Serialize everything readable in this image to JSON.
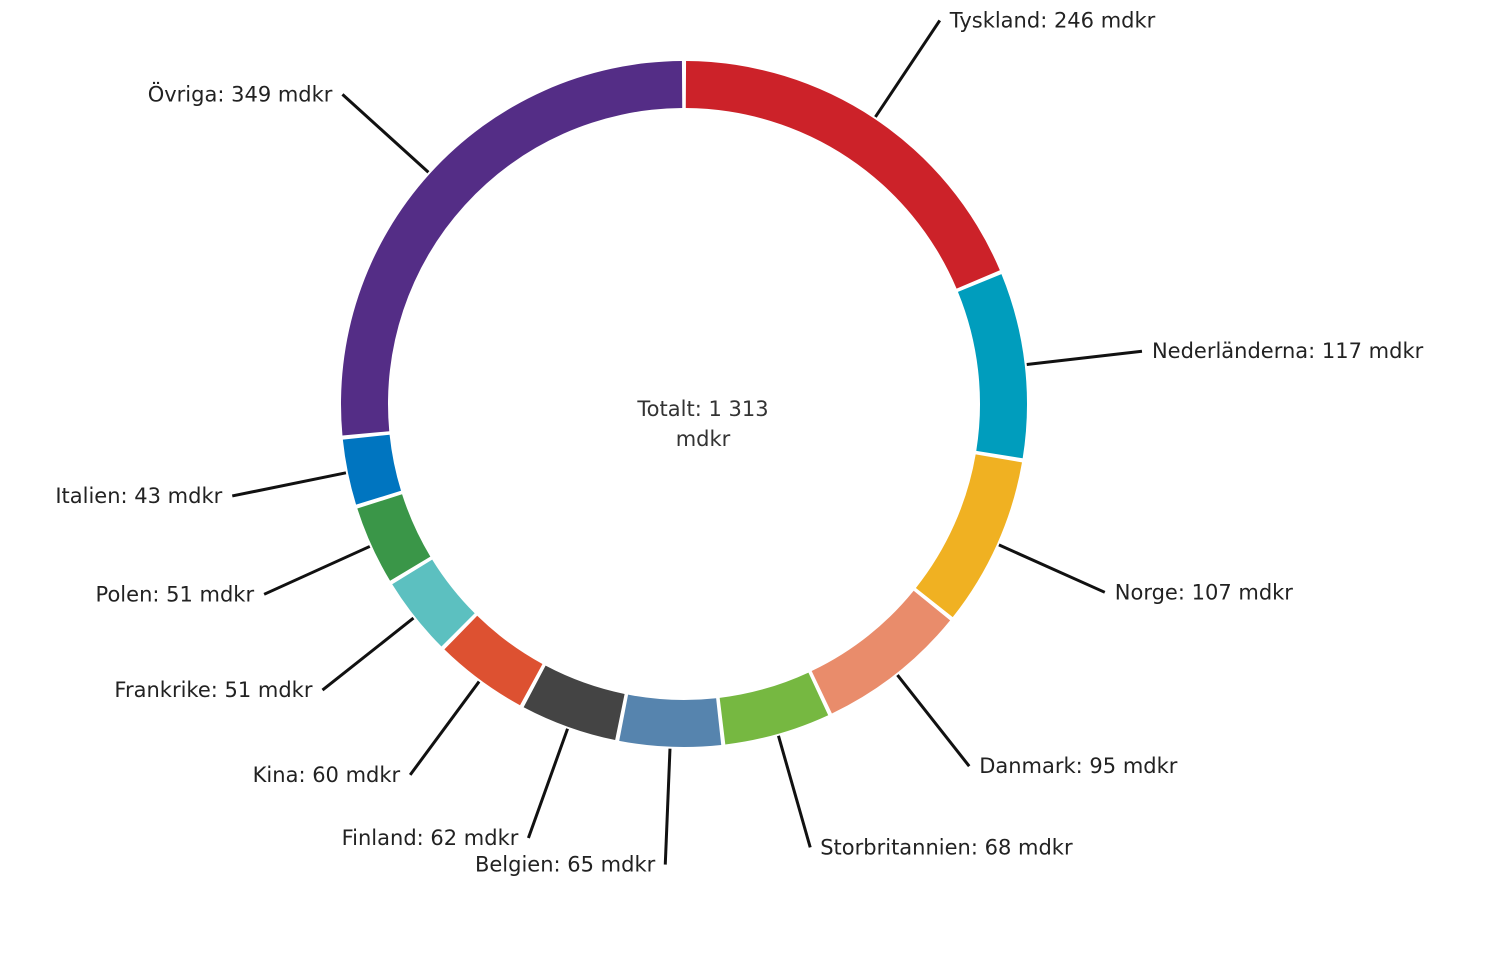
{
  "chart_data": {
    "type": "pie",
    "variant": "donut",
    "start_angle_deg": 0,
    "direction": "clockwise",
    "unit": "mdkr",
    "total": {
      "line1": "Totalt: 1 313",
      "line2": "mdkr",
      "value": 1313
    },
    "slices": [
      {
        "name": "Tyskland",
        "value": 246,
        "label": "Tyskland: 246 mdkr",
        "color": "#cc2229",
        "label_side": "right"
      },
      {
        "name": "Nederländerna",
        "value": 117,
        "label": "Nederländerna: 117 mdkr",
        "color": "#009dbd",
        "label_side": "right"
      },
      {
        "name": "Norge",
        "value": 107,
        "label": "Norge: 107 mdkr",
        "color": "#f0b122",
        "label_side": "right"
      },
      {
        "name": "Danmark",
        "value": 95,
        "label": "Danmark: 95 mdkr",
        "color": "#e98c6b",
        "label_side": "right"
      },
      {
        "name": "Storbritannien",
        "value": 68,
        "label": "Storbritannien: 68 mdkr",
        "color": "#76b841",
        "label_side": "right"
      },
      {
        "name": "Belgien",
        "value": 65,
        "label": "Belgien: 65 mdkr",
        "color": "#5684ae",
        "label_side": "left"
      },
      {
        "name": "Finland",
        "value": 62,
        "label": "Finland: 62 mdkr",
        "color": "#444444",
        "label_side": "left"
      },
      {
        "name": "Kina",
        "value": 60,
        "label": "Kina: 60 mdkr",
        "color": "#dd5131",
        "label_side": "left"
      },
      {
        "name": "Frankrike",
        "value": 51,
        "label": "Frankrike: 51 mdkr",
        "color": "#5cc0c0",
        "label_side": "left"
      },
      {
        "name": "Polen",
        "value": 51,
        "label": "Polen: 51 mdkr",
        "color": "#3a9648",
        "label_side": "left"
      },
      {
        "name": "Italien",
        "value": 43,
        "label": "Italien: 43 mdkr",
        "color": "#0075c0",
        "label_side": "left"
      },
      {
        "name": "Övriga",
        "value": 349,
        "label": "Övriga: 349 mdkr",
        "color": "#542d86",
        "label_side": "left"
      }
    ]
  }
}
